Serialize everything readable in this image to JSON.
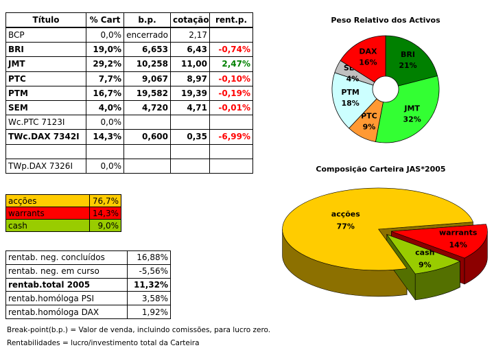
{
  "table": {
    "header": [
      "Título",
      "% Cart",
      "b.p.",
      "cotação",
      "rent.p."
    ],
    "rows": [
      [
        "BCP",
        "0,0%",
        "encerrado",
        "2,17",
        null
      ],
      [
        "BRI",
        "19,0%",
        "6,653",
        "6,43",
        "-0,74%"
      ],
      [
        "JMT",
        "29,2%",
        "10,258",
        "11,00",
        "2,47%"
      ],
      [
        "PTC",
        "7,7%",
        "9,067",
        "8,97",
        "-0,10%"
      ],
      [
        "PTM",
        "16,7%",
        "19,582",
        "19,39",
        "-0,19%"
      ],
      [
        "SEM",
        "4,0%",
        "4,720",
        "4,71",
        "-0,01%"
      ],
      [
        "Wc.PTC 7123I",
        "0,0%",
        null,
        null,
        null
      ],
      [
        "TWc.DAX 7342I",
        "14,3%",
        "0,600",
        "0,35",
        "-6,99%"
      ],
      [
        null,
        null,
        null,
        null,
        null
      ],
      [
        "TWp.DAX 7326I",
        "0,0%",
        null,
        null,
        null
      ]
    ]
  },
  "allocation": {
    "rows": [
      [
        "acções",
        "76,7%"
      ],
      [
        "warrants",
        "14,3%"
      ],
      [
        "cash",
        "9,0%"
      ]
    ],
    "colors": [
      "#ffcc00",
      "#ff0000",
      "#99cc00"
    ]
  },
  "returns": {
    "rows": [
      [
        "rentab. neg. concluídos",
        "16,88%"
      ],
      [
        "rentab. neg. em curso",
        "-5,56%"
      ],
      [
        "rentab.total 2005",
        "11,32%"
      ],
      [
        "rentab.homóloga PSI",
        "3,58%"
      ],
      [
        "rentab.homóloga DAX",
        "1,92%"
      ]
    ]
  },
  "notes": [
    "Break-point(b.p.) = Valor de venda, incluindo comissões, para lucro zero.",
    "Rentabilidades = lucro/investimento total da Carteira"
  ],
  "chart_data": [
    {
      "type": "donut",
      "title": "Peso Relativo dos Activos",
      "categories": [
        "BRI",
        "JMT",
        "PTC",
        "PTM",
        "SEM",
        "DAX"
      ],
      "values": [
        21,
        32,
        9,
        18,
        4,
        16
      ],
      "value_labels": [
        "21%",
        "32%",
        "9%",
        "18%",
        "4%",
        "16%"
      ],
      "colors": [
        "#008000",
        "#33ff33",
        "#ff9933",
        "#ccffff",
        "#c0c0c0",
        "#ff0000"
      ]
    },
    {
      "type": "pie3d",
      "title": "Composição Carteira JAS*2005",
      "categories": [
        "acções",
        "warrants",
        "cash"
      ],
      "values": [
        77,
        14,
        9
      ],
      "value_labels": [
        "77%",
        "14%",
        "9%"
      ],
      "colors": [
        "#ffcc00",
        "#ff0000",
        "#99cc00"
      ]
    }
  ]
}
